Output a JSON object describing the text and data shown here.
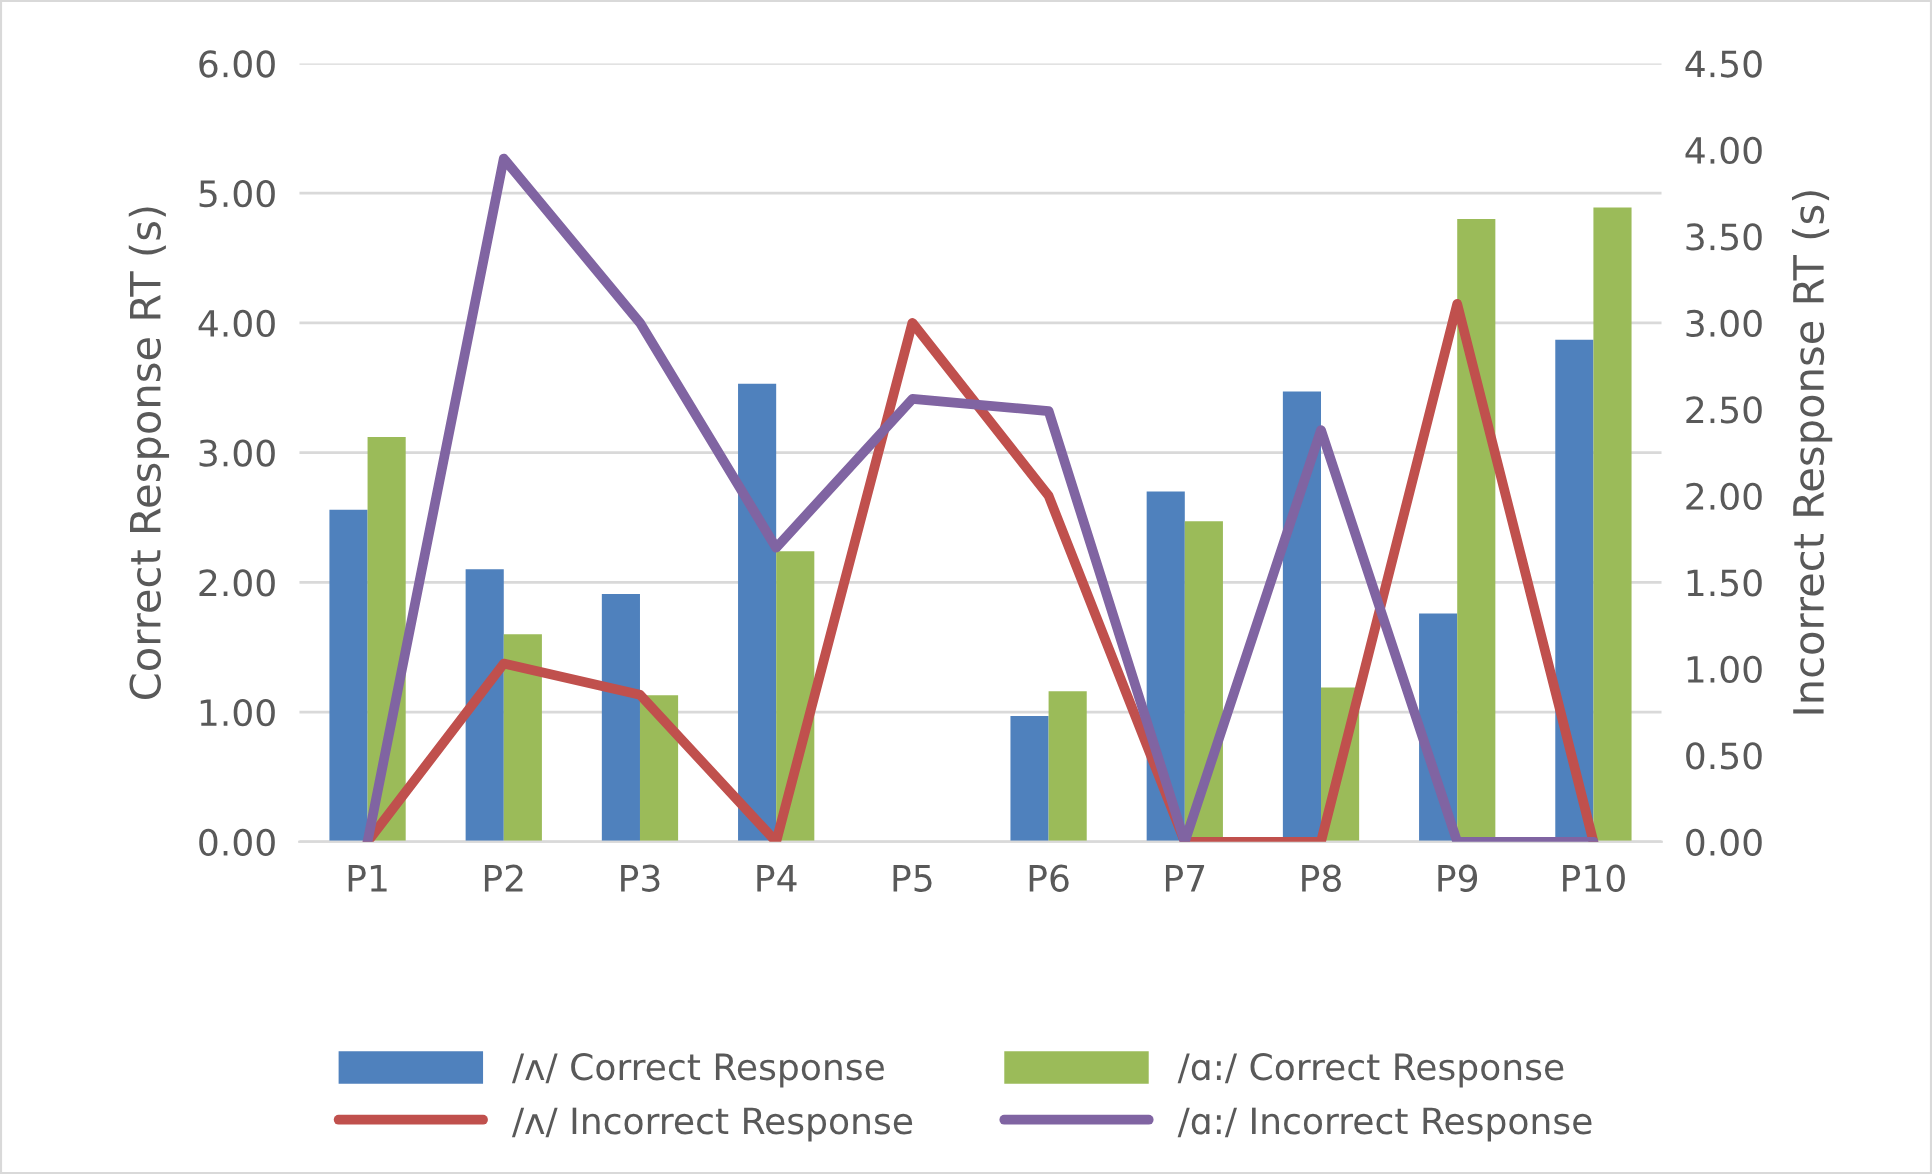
{
  "chart_data": {
    "type": "bar",
    "ylabel": "Correct Response RT (s)",
    "y2label": "Incorrect Response RT (s)",
    "categories": [
      "P1",
      "P2",
      "P3",
      "P4",
      "P5",
      "P6",
      "P7",
      "P8",
      "P9",
      "P10"
    ],
    "series": [
      {
        "name": "/ʌ/ Correct Response",
        "color": "#4f81bd",
        "values": [
          2.56,
          2.1,
          1.91,
          3.53,
          null,
          0.97,
          2.7,
          3.47,
          1.76,
          3.87
        ]
      },
      {
        "name": "/ɑ:/ Correct Response",
        "color": "#9bbb59",
        "values": [
          3.12,
          1.6,
          1.13,
          2.24,
          null,
          1.16,
          2.47,
          1.19,
          4.8,
          4.89
        ]
      },
      {
        "name": "/ʌ/ Incorrect Response",
        "type": "line",
        "axis": "y2",
        "color": "#c0504d",
        "values": [
          0,
          1.03,
          0.85,
          0,
          3.0,
          2.0,
          0,
          0,
          3.11,
          0
        ]
      },
      {
        "name": "/ɑ:/ Incorrect Response",
        "type": "line",
        "axis": "y2",
        "color": "#8064a2",
        "values": [
          0,
          3.95,
          3.0,
          1.7,
          2.56,
          2.49,
          0,
          2.38,
          0,
          0
        ]
      }
    ],
    "ylim": [
      0,
      6
    ],
    "yticks": [
      {
        "value": 0,
        "label": "0.00"
      },
      {
        "value": 1,
        "label": "1.00"
      },
      {
        "value": 2,
        "label": "2.00"
      },
      {
        "value": 3,
        "label": "3.00"
      },
      {
        "value": 4,
        "label": "4.00"
      },
      {
        "value": 5,
        "label": "5.00"
      },
      {
        "value": 6,
        "label": "6.00"
      }
    ],
    "y2lim": [
      0,
      4.5
    ],
    "y2ticks": [
      {
        "value": 0,
        "label": "0.00"
      },
      {
        "value": 0.5,
        "label": "0.50"
      },
      {
        "value": 1,
        "label": "1.00"
      },
      {
        "value": 1.5,
        "label": "1.50"
      },
      {
        "value": 2,
        "label": "2.00"
      },
      {
        "value": 2.5,
        "label": "2.50"
      },
      {
        "value": 3,
        "label": "3.00"
      },
      {
        "value": 3.5,
        "label": "3.50"
      },
      {
        "value": 4,
        "label": "4.00"
      },
      {
        "value": 4.5,
        "label": "4.50"
      }
    ],
    "grid": "y",
    "legend": "bottom"
  }
}
